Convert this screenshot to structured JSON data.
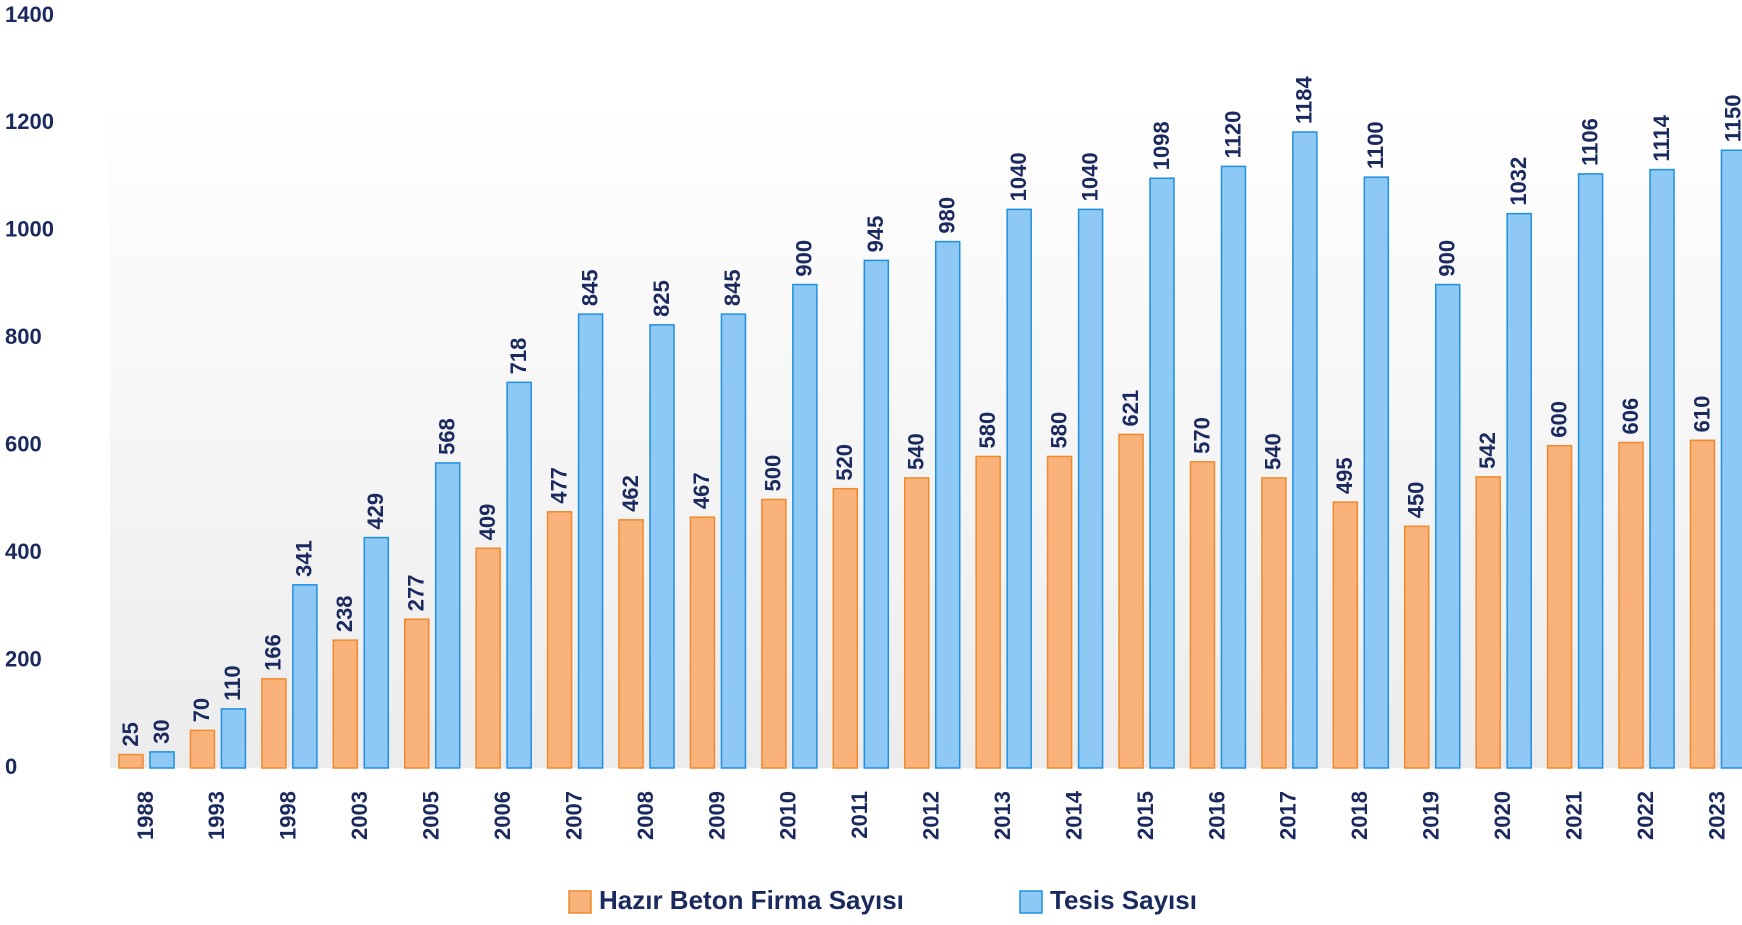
{
  "chart_data": {
    "type": "bar",
    "categories": [
      "1988",
      "1993",
      "1998",
      "2003",
      "2005",
      "2006",
      "2007",
      "2008",
      "2009",
      "2010",
      "2011",
      "2012",
      "2013",
      "2014",
      "2015",
      "2016",
      "2017",
      "2018",
      "2019",
      "2020",
      "2021",
      "2022",
      "2023"
    ],
    "series": [
      {
        "name": "Hazır Beton Firma Sayısı",
        "color": "#f9b27a",
        "values": [
          25,
          70,
          166,
          238,
          277,
          409,
          477,
          462,
          467,
          500,
          520,
          540,
          580,
          580,
          621,
          570,
          540,
          495,
          450,
          542,
          600,
          606,
          610
        ]
      },
      {
        "name": "Tesis Sayısı",
        "color": "#8ec9f5",
        "values": [
          30,
          110,
          341,
          429,
          568,
          718,
          845,
          825,
          845,
          900,
          945,
          980,
          1040,
          1040,
          1098,
          1120,
          1184,
          1100,
          900,
          1032,
          1106,
          1114,
          1150
        ]
      }
    ],
    "ylim": [
      0,
      1400
    ],
    "yticks": [
      0,
      200,
      400,
      600,
      800,
      1000,
      1200,
      1400
    ],
    "legend": "bottom"
  }
}
